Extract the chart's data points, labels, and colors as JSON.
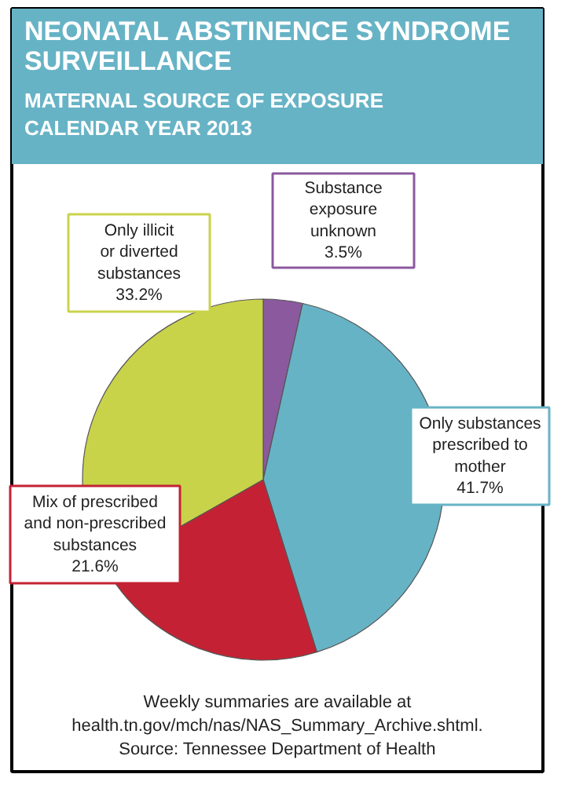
{
  "chart_data": {
    "type": "pie",
    "title": "NEONATAL ABSTINENCE SYNDROME\nSURVEILLANCE",
    "subtitle": "MATERNAL SOURCE OF EXPOSURE\nCALENDAR YEAR 2013",
    "categories": [
      "Substance\nexposure\nunknown",
      "Only substances\nprescribed to\nmother",
      "Mix of prescribed\nand non-prescribed\nsubstances",
      "Only illicit\nor diverted\nsubstances"
    ],
    "values": [
      3.5,
      41.7,
      21.6,
      33.2
    ],
    "colors": [
      "#8b5a9e",
      "#67b3c6",
      "#c42234",
      "#c9d34a"
    ],
    "value_labels": [
      "3.5%",
      "41.7%",
      "21.6%",
      "33.2%"
    ],
    "annotations": [
      "Weekly summaries are available at\nhealth.tn.gov/mch/nas/NAS_Summary_Archive.shtml.\nSource: Tennessee Department of Health"
    ]
  }
}
